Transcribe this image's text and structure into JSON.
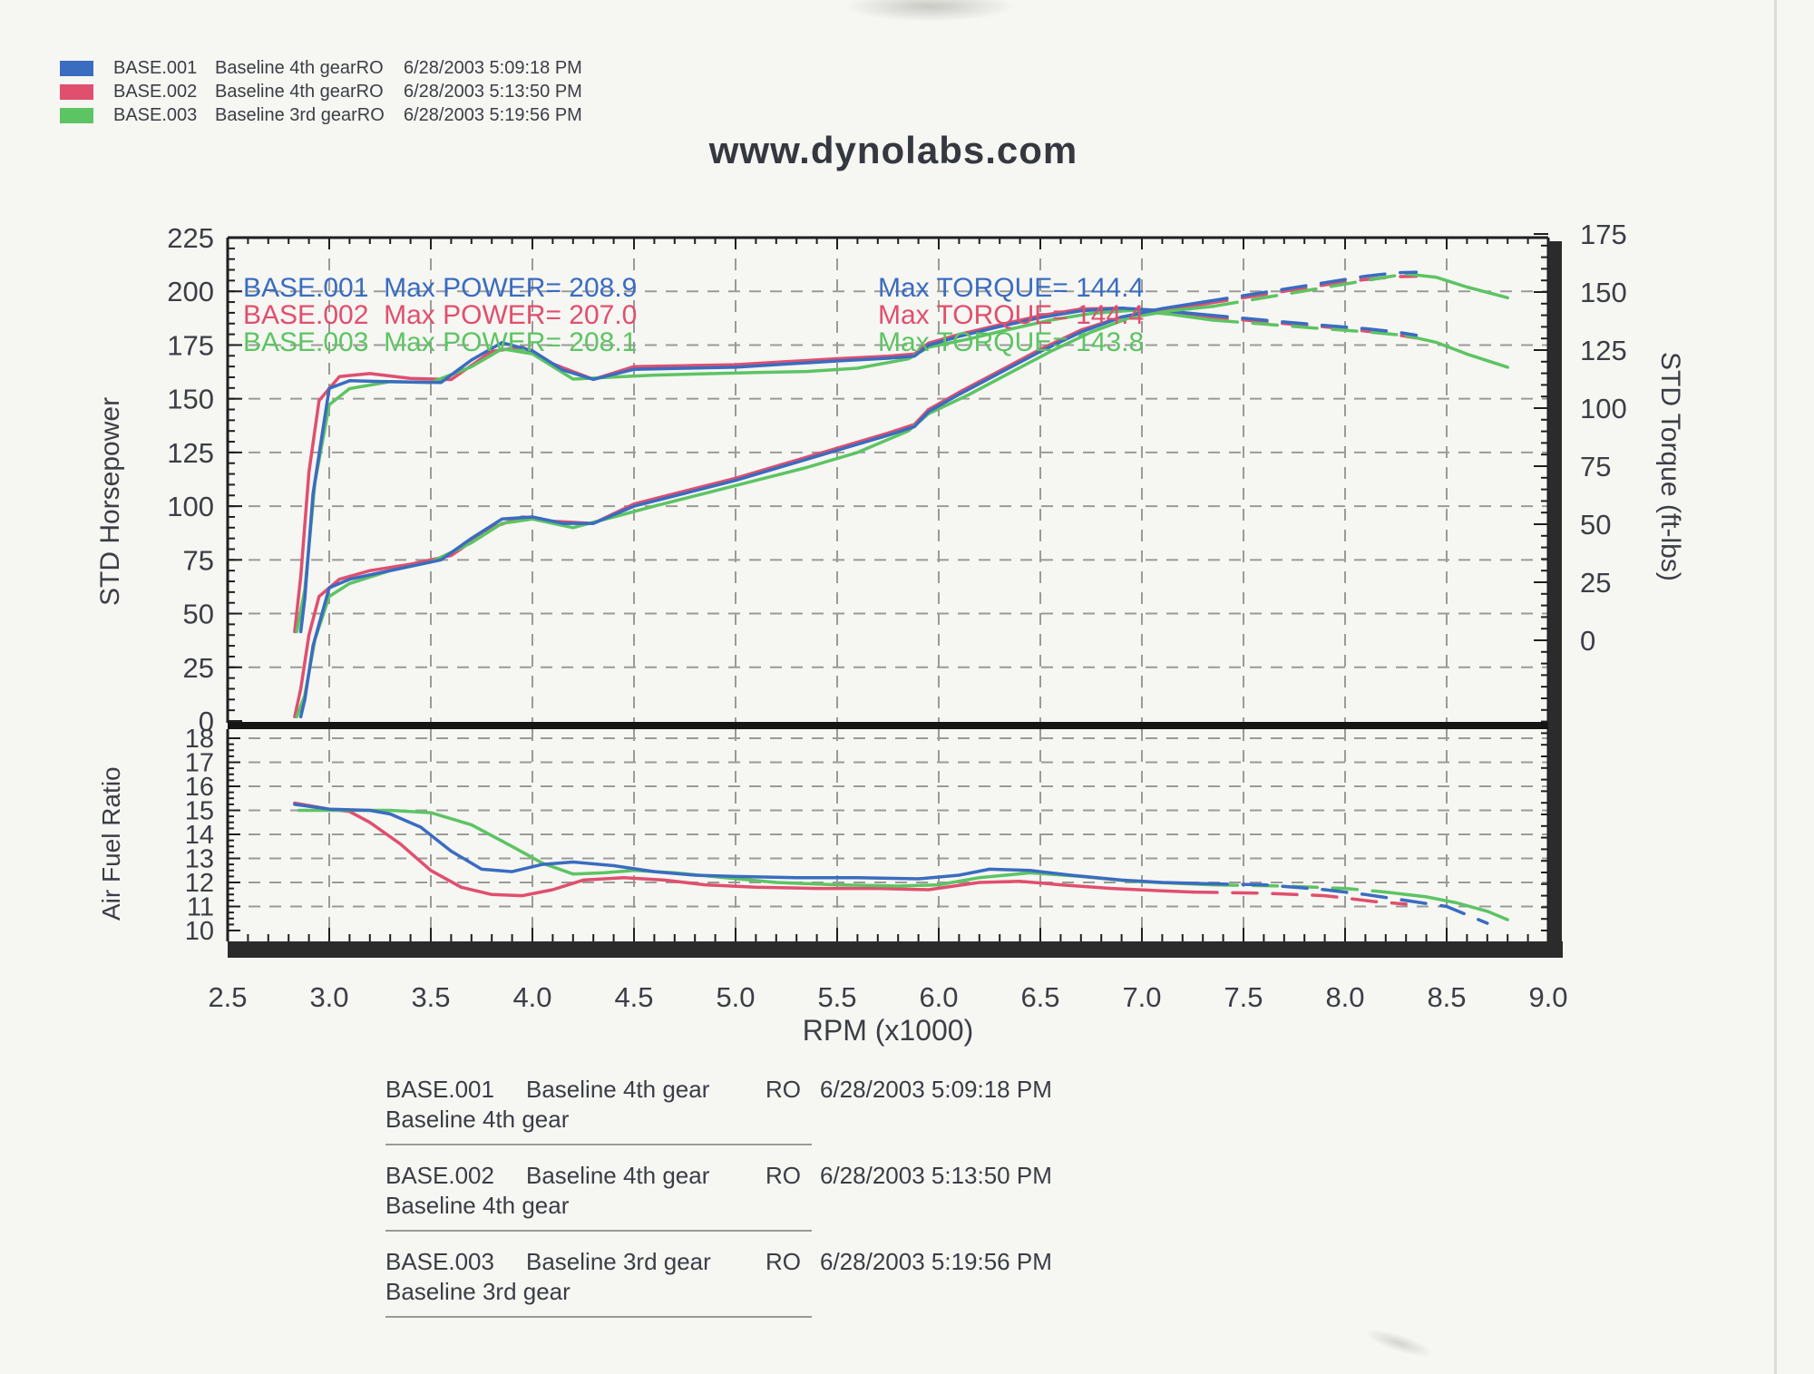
{
  "page": {
    "title": "www.dynolabs.com"
  },
  "runs": [
    {
      "id": "BASE.001",
      "gear_desc": "Baseline 4th gear",
      "legend_desc": "Baseline 4th gearRO",
      "ro": "RO",
      "datetime": "6/28/2003 5:09:18 PM",
      "color": "#3a6cc0",
      "max_power": "208.9",
      "max_torque": "144.4",
      "power_annotation": "BASE.001  Max POWER= 208.9",
      "torque_annotation": "Max TORQUE= 144.4"
    },
    {
      "id": "BASE.002",
      "gear_desc": "Baseline 4th gear",
      "legend_desc": "Baseline 4th gearRO",
      "ro": "RO",
      "datetime": "6/28/2003 5:13:50 PM",
      "color": "#e04f6e",
      "max_power": "207.0",
      "max_torque": "144.4",
      "power_annotation": "BASE.002  Max POWER= 207.0",
      "torque_annotation": "Max TORQUE= 144.4"
    },
    {
      "id": "BASE.003",
      "gear_desc": "Baseline 3rd gear",
      "legend_desc": "Baseline 3rd gearRO",
      "ro": "RO",
      "datetime": "6/28/2003 5:19:56 PM",
      "color": "#5dc463",
      "max_power": "208.1",
      "max_torque": "143.8",
      "power_annotation": "BASE.003  Max POWER= 208.1",
      "torque_annotation": "Max TORQUE= 143.8"
    }
  ],
  "chart_data": [
    {
      "type": "line",
      "name": "dyno-power-torque",
      "title": "www.dynolabs.com",
      "xlabel": "RPM (x1000)",
      "ylabel_left": "STD Horsepower",
      "ylabel_right": "STD Torque (ft-lbs)",
      "x_range": [
        2.5,
        9.0
      ],
      "x_ticks": [
        2.5,
        3.0,
        3.5,
        4.0,
        4.5,
        5.0,
        5.5,
        6.0,
        6.5,
        7.0,
        7.5,
        8.0,
        8.5,
        9.0
      ],
      "y_left_range": [
        0,
        225
      ],
      "y_left_ticks": [
        0,
        25,
        50,
        75,
        100,
        125,
        150,
        175,
        200,
        225
      ],
      "y_right_range": [
        0,
        175
      ],
      "y_right_ticks": [
        0,
        25,
        50,
        75,
        100,
        125,
        150,
        175
      ],
      "grid": true,
      "legend_position": "top-left",
      "series": [
        {
          "run": "BASE.002",
          "quantity": "torque",
          "axis": "right",
          "color": "#e04f6e",
          "segments": [
            {
              "dash": false,
              "x": [
                2.83,
                2.86,
                2.9,
                2.95,
                3.05,
                3.2,
                3.4,
                3.6,
                3.8,
                3.95,
                4.1,
                4.3,
                4.5,
                4.75,
                5.0,
                5.25,
                5.5,
                5.75,
                5.88,
                5.95,
                6.1,
                6.3,
                6.5,
                6.7,
                6.9,
                7.1,
                7.3
              ],
              "y": [
                3.7,
                27.5,
                72.4,
                103.3,
                113.6,
                114.9,
                112.8,
                112.3,
                124.4,
                126.3,
                119.1,
                112.4,
                117.9,
                118.3,
                118.7,
                120,
                121.3,
                122.4,
                123.3,
                128,
                131.7,
                135.9,
                139.8,
                142.7,
                143.1,
                141.3,
                139.6
              ]
            },
            {
              "dash": true,
              "x": [
                7.3,
                7.5,
                7.7,
                7.9,
                8.1,
                8.25,
                8.35
              ],
              "y": [
                139.6,
                138,
                136.4,
                135,
                133.2,
                131.6,
                130.2
              ]
            }
          ]
        },
        {
          "run": "BASE.003",
          "quantity": "torque",
          "axis": "right",
          "color": "#5dc463",
          "segments": [
            {
              "dash": false,
              "x": [
                2.84,
                2.88,
                2.93,
                3.0,
                3.1,
                3.3,
                3.5,
                3.7,
                3.85,
                4.0,
                4.2,
                4.4,
                4.6,
                4.85,
                5.1,
                5.35,
                5.6,
                5.85,
                5.95,
                6.15,
                6.35,
                6.55,
                6.75,
                6.95,
                7.15,
                7.35
              ],
              "y": [
                3.7,
                21.9,
                68.1,
                101.5,
                108.4,
                111.4,
                111,
                117.8,
                125.5,
                123.4,
                112.5,
                113.4,
                114.2,
                114.8,
                115.3,
                115.8,
                117.2,
                121.2,
                126.2,
                129.8,
                134,
                137.9,
                140.8,
                142.1,
                140.3,
                137.9
              ]
            },
            {
              "dash": true,
              "x": [
                7.35,
                7.6,
                7.85,
                8.1,
                8.3
              ],
              "y": [
                137.9,
                136.2,
                134.5,
                132.9,
                131.3
              ]
            },
            {
              "dash": false,
              "x": [
                8.3,
                8.45,
                8.6,
                8.8
              ],
              "y": [
                131.3,
                128.3,
                123.3,
                117.6
              ]
            }
          ]
        },
        {
          "run": "BASE.001",
          "quantity": "torque",
          "axis": "right",
          "color": "#3a6cc0",
          "segments": [
            {
              "dash": false,
              "x": [
                2.86,
                2.88,
                2.92,
                3.0,
                3.1,
                3.25,
                3.4,
                3.55,
                3.7,
                3.85,
                4.0,
                4.15,
                4.3,
                4.5,
                4.75,
                5.0,
                5.25,
                5.5,
                5.75,
                5.88,
                5.95,
                6.1,
                6.3,
                6.5,
                6.7,
                6.9,
                7.1,
                7.3
              ],
              "y": [
                3.7,
                18.2,
                63,
                108.5,
                111.8,
                111.5,
                111.2,
                111,
                120.7,
                128.2,
                124.7,
                116.4,
                112.4,
                116.7,
                117.2,
                117.6,
                119,
                120.3,
                121.5,
                122.4,
                127.1,
                130.9,
                135.1,
                139,
                141.9,
                143.1,
                142,
                140.3
              ]
            },
            {
              "dash": true,
              "x": [
                7.3,
                7.5,
                7.7,
                7.9,
                8.1,
                8.25,
                8.35
              ],
              "y": [
                140.3,
                138.7,
                137.1,
                135.6,
                134.2,
                132.8,
                131.4
              ]
            }
          ]
        },
        {
          "run": "BASE.002",
          "quantity": "power",
          "axis": "left",
          "color": "#e04f6e",
          "segments": [
            {
              "dash": false,
              "x": [
                2.83,
                2.86,
                2.9,
                2.95,
                3.05,
                3.2,
                3.4,
                3.6,
                3.8,
                3.95,
                4.1,
                4.3,
                4.5,
                4.75,
                5.0,
                5.25,
                5.5,
                5.75,
                5.88,
                5.95,
                6.1,
                6.3,
                6.5,
                6.7,
                6.9,
                7.1,
                7.3
              ],
              "y": [
                2,
                15,
                40,
                58,
                66,
                70,
                73,
                77,
                90,
                95,
                93,
                92,
                101,
                107,
                113,
                120,
                127,
                134,
                138,
                145,
                153,
                163,
                173,
                182,
                188,
                191,
                194
              ]
            },
            {
              "dash": true,
              "x": [
                7.3,
                7.5,
                7.7,
                7.9,
                8.1,
                8.25,
                8.35
              ],
              "y": [
                194,
                197,
                200,
                203,
                205.5,
                206.8,
                207
              ]
            }
          ]
        },
        {
          "run": "BASE.003",
          "quantity": "power",
          "axis": "left",
          "color": "#5dc463",
          "segments": [
            {
              "dash": false,
              "x": [
                2.84,
                2.88,
                2.93,
                3.0,
                3.1,
                3.3,
                3.5,
                3.7,
                3.85,
                4.0,
                4.2,
                4.4,
                4.6,
                4.85,
                5.1,
                5.35,
                5.6,
                5.85,
                5.95,
                6.15,
                6.35,
                6.55,
                6.75,
                6.95,
                7.15,
                7.35
              ],
              "y": [
                2,
                12,
                38,
                58,
                64,
                70,
                74,
                83,
                92,
                94,
                90,
                95,
                100,
                106,
                112,
                118,
                125,
                135,
                143,
                152,
                162,
                172,
                181,
                188,
                191,
                193
              ]
            },
            {
              "dash": true,
              "x": [
                7.35,
                7.6,
                7.85,
                8.1,
                8.3
              ],
              "y": [
                193,
                197,
                201,
                205,
                208.1
              ]
            },
            {
              "dash": false,
              "x": [
                8.3,
                8.45,
                8.6,
                8.8
              ],
              "y": [
                208.1,
                206.5,
                202,
                197
              ]
            }
          ]
        },
        {
          "run": "BASE.001",
          "quantity": "power",
          "axis": "left",
          "color": "#3a6cc0",
          "segments": [
            {
              "dash": false,
              "x": [
                2.86,
                2.88,
                2.92,
                3.0,
                3.1,
                3.25,
                3.4,
                3.55,
                3.7,
                3.85,
                4.0,
                4.15,
                4.3,
                4.5,
                4.75,
                5.0,
                5.25,
                5.5,
                5.75,
                5.88,
                5.95,
                6.1,
                6.3,
                6.5,
                6.7,
                6.9,
                7.1,
                7.3
              ],
              "y": [
                2,
                10,
                35,
                62,
                66,
                69,
                72,
                75,
                85,
                94,
                95,
                92,
                92,
                100,
                106,
                112,
                119,
                126,
                133,
                137,
                144,
                152,
                162,
                172,
                181,
                188,
                192,
                195
              ]
            },
            {
              "dash": true,
              "x": [
                7.3,
                7.5,
                7.7,
                7.9,
                8.1,
                8.25,
                8.35
              ],
              "y": [
                195,
                198,
                201,
                204,
                207,
                208.6,
                208.9
              ]
            }
          ]
        }
      ]
    },
    {
      "type": "line",
      "name": "air-fuel-ratio",
      "xlabel": "RPM (x1000)",
      "ylabel": "Air Fuel Ratio",
      "x_range": [
        2.5,
        9.0
      ],
      "y_range": [
        10,
        18
      ],
      "y_ticks": [
        10,
        11,
        12,
        13,
        14,
        15,
        16,
        17,
        18
      ],
      "grid": true,
      "series": [
        {
          "run": "BASE.002",
          "color": "#e04f6e",
          "segments": [
            {
              "dash": false,
              "x": [
                2.83,
                3.0,
                3.1,
                3.2,
                3.35,
                3.5,
                3.65,
                3.8,
                3.95,
                4.1,
                4.25,
                4.45,
                4.65,
                4.85,
                5.1,
                5.4,
                5.7,
                5.95,
                6.2,
                6.4,
                6.6,
                6.85,
                7.1,
                7.25
              ],
              "y": [
                15.3,
                15.05,
                14.95,
                14.5,
                13.6,
                12.5,
                11.8,
                11.5,
                11.45,
                11.7,
                12.1,
                12.2,
                12.1,
                11.9,
                11.8,
                11.75,
                11.75,
                11.7,
                12.0,
                12.05,
                11.9,
                11.75,
                11.65,
                11.6
              ]
            },
            {
              "dash": true,
              "x": [
                7.25,
                7.6,
                7.9,
                8.15,
                8.3
              ],
              "y": [
                11.6,
                11.55,
                11.45,
                11.2,
                11.1
              ]
            }
          ]
        },
        {
          "run": "BASE.003",
          "color": "#5dc463",
          "segments": [
            {
              "dash": false,
              "x": [
                2.85,
                3.1,
                3.3,
                3.5,
                3.7,
                3.9,
                4.05,
                4.2,
                4.35,
                4.5,
                4.7,
                4.95,
                5.2,
                5.5,
                5.8,
                6.0,
                6.2,
                6.45,
                6.7,
                6.95,
                7.2,
                7.35
              ],
              "y": [
                15.0,
                15.0,
                15.0,
                14.9,
                14.4,
                13.5,
                12.8,
                12.35,
                12.4,
                12.5,
                12.4,
                12.2,
                12.0,
                11.9,
                11.85,
                11.9,
                12.2,
                12.4,
                12.25,
                12.05,
                11.95,
                11.9
              ]
            },
            {
              "dash": true,
              "x": [
                7.35,
                7.7,
                8.0,
                8.2
              ],
              "y": [
                11.9,
                11.85,
                11.75,
                11.6
              ]
            },
            {
              "dash": false,
              "x": [
                8.2,
                8.4,
                8.55,
                8.7,
                8.8
              ],
              "y": [
                11.6,
                11.4,
                11.15,
                10.8,
                10.45
              ]
            }
          ]
        },
        {
          "run": "BASE.001",
          "color": "#3a6cc0",
          "segments": [
            {
              "dash": false,
              "x": [
                2.83,
                3.0,
                3.2,
                3.3,
                3.45,
                3.6,
                3.75,
                3.9,
                4.05,
                4.2,
                4.4,
                4.6,
                4.8,
                5.0,
                5.3,
                5.6,
                5.9,
                6.1,
                6.25,
                6.45,
                6.65,
                6.9,
                7.1,
                7.3
              ],
              "y": [
                15.25,
                15.05,
                15.0,
                14.85,
                14.3,
                13.3,
                12.55,
                12.45,
                12.75,
                12.85,
                12.7,
                12.45,
                12.3,
                12.25,
                12.2,
                12.2,
                12.15,
                12.3,
                12.55,
                12.5,
                12.3,
                12.1,
                12.0,
                11.95
              ]
            },
            {
              "dash": true,
              "x": [
                7.3,
                7.6,
                7.9,
                8.1,
                8.3,
                8.5,
                8.7
              ],
              "y": [
                11.95,
                11.9,
                11.7,
                11.5,
                11.25,
                11.0,
                10.3
              ]
            }
          ]
        }
      ]
    }
  ]
}
